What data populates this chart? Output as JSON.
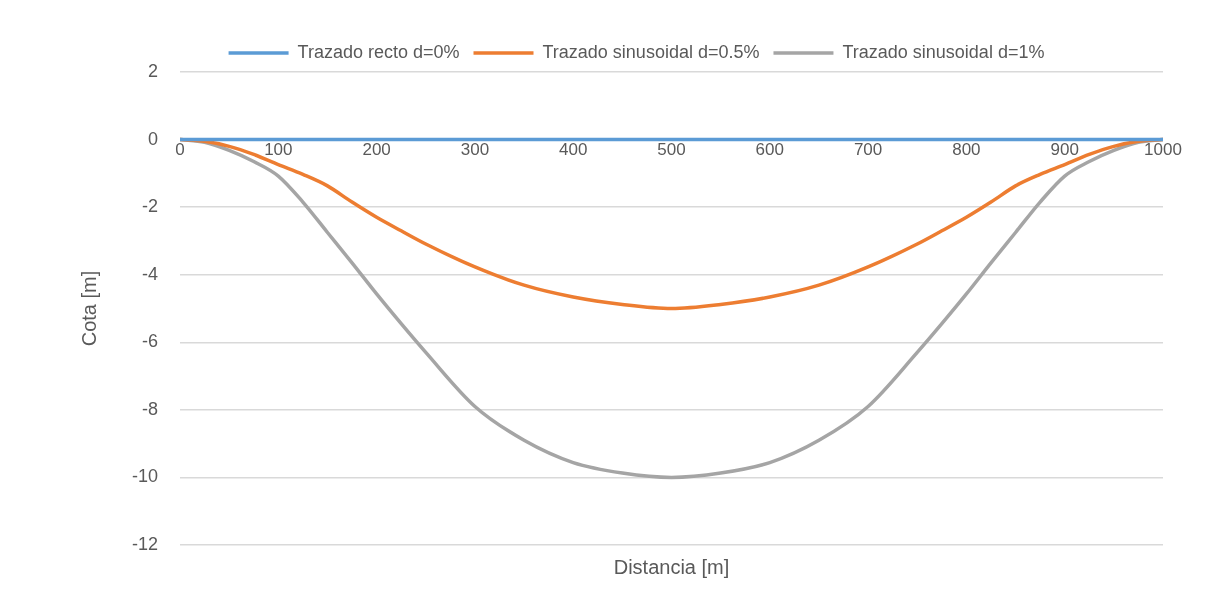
{
  "chart_data": {
    "type": "line",
    "xlabel": "Distancia [m]",
    "ylabel": "Cota [m]",
    "x": [
      0,
      25,
      50,
      75,
      100,
      125,
      150,
      175,
      200,
      225,
      250,
      300,
      350,
      400,
      450,
      500,
      550,
      600,
      650,
      700,
      750,
      775,
      800,
      825,
      850,
      875,
      900,
      925,
      950,
      975,
      1000
    ],
    "xlim": [
      0,
      1000
    ],
    "xticks": [
      0,
      100,
      200,
      300,
      400,
      500,
      600,
      700,
      800,
      900,
      1000
    ],
    "ylim": [
      -12,
      2
    ],
    "yticks": [
      -12,
      -10,
      -8,
      -6,
      -4,
      -2,
      0,
      2
    ],
    "grid": "y",
    "legend": "top",
    "marker": "none",
    "line_style": "solid",
    "series": [
      {
        "name": "Trazado recto d=0%",
        "color": "#5b9bd5",
        "values": [
          0,
          0,
          0,
          0,
          0,
          0,
          0,
          0,
          0,
          0,
          0,
          0,
          0,
          0,
          0,
          0,
          0,
          0,
          0,
          0,
          0,
          0,
          0,
          0,
          0,
          0,
          0,
          0,
          0,
          0,
          0
        ]
      },
      {
        "name": "Trazado sinusoidal d=0.5%",
        "color": "#ed7d31",
        "values": [
          0,
          -0.05,
          -0.2,
          -0.44,
          -0.74,
          -1.03,
          -1.37,
          -1.85,
          -2.3,
          -2.7,
          -3.09,
          -3.77,
          -4.31,
          -4.66,
          -4.88,
          -5,
          -4.88,
          -4.66,
          -4.31,
          -3.77,
          -3.09,
          -2.7,
          -2.3,
          -1.85,
          -1.37,
          -1.03,
          -0.74,
          -0.44,
          -0.2,
          -0.05,
          0
        ]
      },
      {
        "name": "Trazado sinusoidal d=1%",
        "color": "#a5a5a5",
        "values": [
          0,
          -0.08,
          -0.32,
          -0.65,
          -1.08,
          -1.85,
          -2.75,
          -3.65,
          -4.57,
          -5.45,
          -6.3,
          -7.9,
          -8.9,
          -9.56,
          -9.87,
          -10,
          -9.87,
          -9.56,
          -8.9,
          -7.9,
          -6.3,
          -5.45,
          -4.57,
          -3.65,
          -2.75,
          -1.85,
          -1.08,
          -0.65,
          -0.32,
          -0.08,
          0
        ]
      }
    ]
  }
}
